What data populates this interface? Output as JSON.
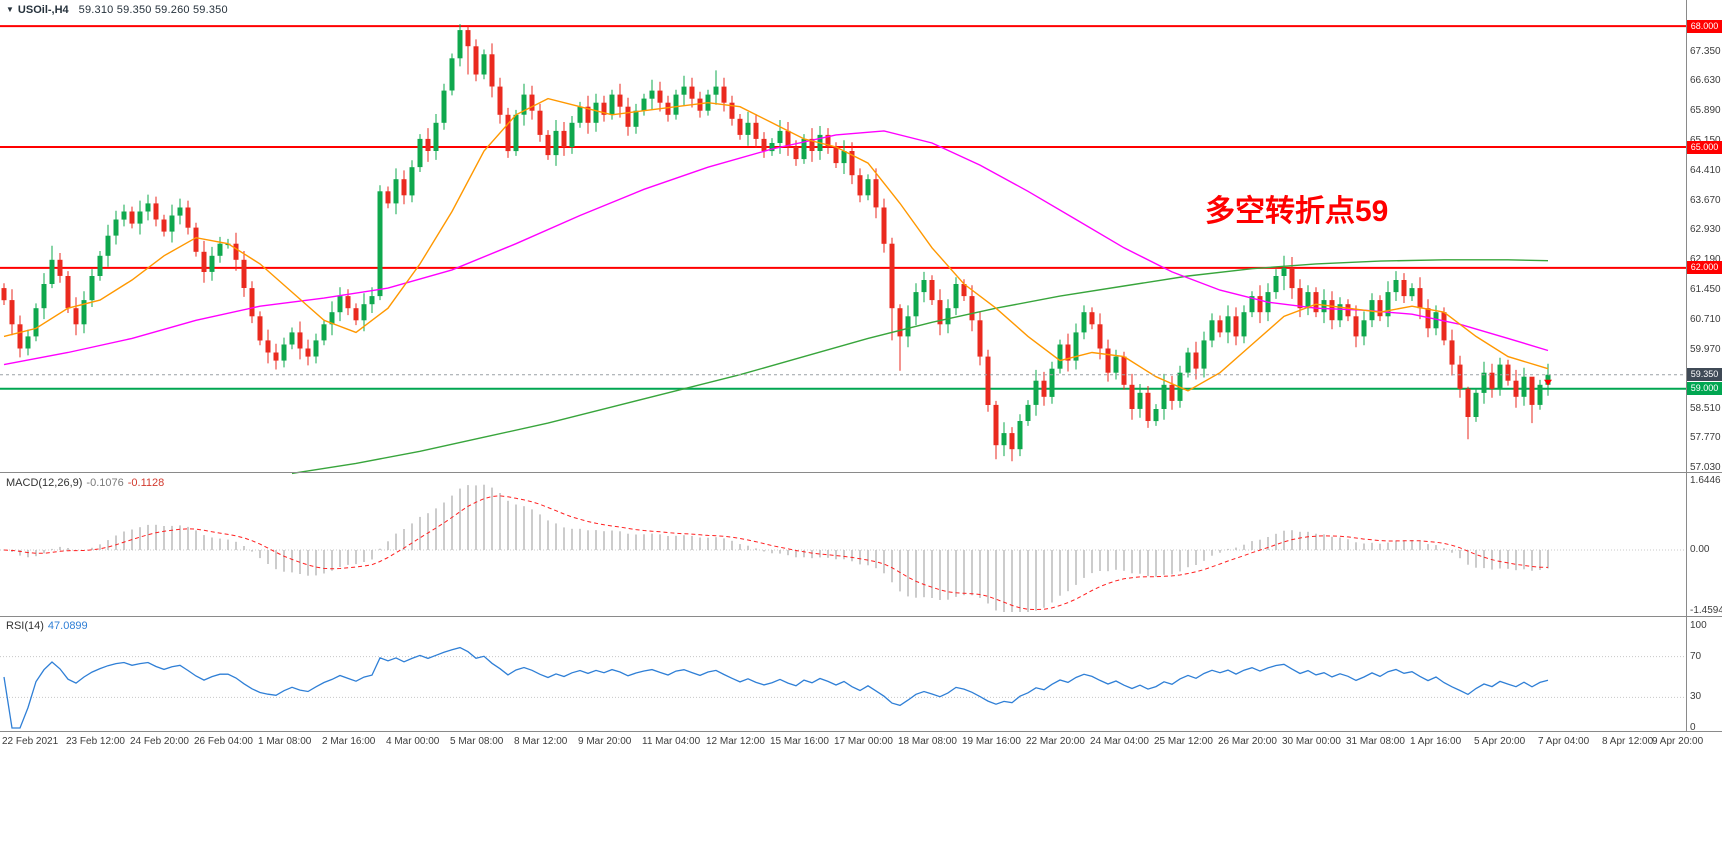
{
  "window": {
    "background": "#ffffff"
  },
  "header": {
    "collapse_icon": "▼",
    "title": "USOil-,H4",
    "ohlc": "59.310 59.350 59.260 59.350"
  },
  "annotation": {
    "text": "多空转折点59",
    "color": "#ff0000"
  },
  "colors": {
    "candle_up": "#0fa84e",
    "candle_down": "#ea2a1f",
    "ma_fast": "#ff9800",
    "ma_mid": "#ff00ff",
    "ma_slow": "#38a53c",
    "level_red": "#ff0000",
    "level_green": "#00a651",
    "macd_histogram": "#bfbfbf",
    "macd_signal": "#ff2020",
    "rsi_line": "#2f7fd6",
    "price_box": "#3f4a56",
    "current_price_line": "#9aa0a6"
  },
  "main_chart": {
    "price_ticks": [
      67.35,
      66.63,
      65.89,
      65.15,
      64.41,
      63.67,
      62.93,
      62.19,
      61.45,
      60.71,
      59.97,
      58.51,
      57.77,
      57.03
    ],
    "hlines": [
      {
        "label": "68.000",
        "value": 68.0,
        "color": "#ff0000"
      },
      {
        "label": "65.000",
        "value": 65.0,
        "color": "#ff0000"
      },
      {
        "label": "62.000",
        "value": 62.0,
        "color": "#ff0000"
      },
      {
        "label": "59.000",
        "value": 59.0,
        "color": "#00a651"
      }
    ],
    "current_price": {
      "label": "59.350",
      "value": 59.35
    }
  },
  "indicators": {
    "macd": {
      "label": "MACD(12,26,9)",
      "value_macd": "-0.1076",
      "value_signal": "-0.1128",
      "ticks": [
        "1.6446",
        "0.00",
        "-1.4594"
      ],
      "params": [
        12,
        26,
        9
      ]
    },
    "rsi": {
      "label": "RSI(14)",
      "value": "47.0899",
      "ticks": [
        100,
        70,
        30,
        0
      ],
      "levels": [
        70,
        30
      ],
      "period": 14
    }
  },
  "time_axis": {
    "labels": [
      "22 Feb 2021",
      "23 Feb 12:00",
      "24 Feb 20:00",
      "26 Feb 04:00",
      "1 Mar 08:00",
      "2 Mar 16:00",
      "4 Mar 00:00",
      "5 Mar 08:00",
      "8 Mar 12:00",
      "9 Mar 20:00",
      "11 Mar 04:00",
      "12 Mar 12:00",
      "15 Mar 16:00",
      "17 Mar 00:00",
      "18 Mar 08:00",
      "19 Mar 16:00",
      "22 Mar 20:00",
      "24 Mar 04:00",
      "25 Mar 12:00",
      "26 Mar 20:00",
      "30 Mar 00:00",
      "31 Mar 08:00",
      "1 Apr 16:00",
      "5 Apr 20:00",
      "7 Apr 04:00",
      "8 Apr 12:00",
      "9 Apr 20:00"
    ]
  },
  "chart_data": {
    "type": "candlestick",
    "symbol": "USOil",
    "timeframe": "H4",
    "title": "USOil-,H4",
    "last_bar_ohlc": {
      "open": 59.31,
      "high": 59.35,
      "low": 59.26,
      "close": 59.35
    },
    "y_axis_range": [
      57.03,
      68.35
    ],
    "x_label_step_bars": 8,
    "first_open": 61.5,
    "closes": [
      61.2,
      60.6,
      60.0,
      60.3,
      61.0,
      61.6,
      62.2,
      61.8,
      61.0,
      60.6,
      61.2,
      61.8,
      62.3,
      62.8,
      63.2,
      63.4,
      63.1,
      63.4,
      63.6,
      63.2,
      62.9,
      63.3,
      63.5,
      63.0,
      62.4,
      61.9,
      62.3,
      62.6,
      62.6,
      62.2,
      61.5,
      60.8,
      60.2,
      59.9,
      59.7,
      60.1,
      60.4,
      60.0,
      59.8,
      60.2,
      60.6,
      60.9,
      61.3,
      61.0,
      60.7,
      61.1,
      61.3,
      63.9,
      63.6,
      64.2,
      63.8,
      64.5,
      65.2,
      64.9,
      65.6,
      66.4,
      67.2,
      67.9,
      67.5,
      66.8,
      67.3,
      66.5,
      65.8,
      64.9,
      65.8,
      66.3,
      65.9,
      65.3,
      64.8,
      65.4,
      65.0,
      65.6,
      66.0,
      65.6,
      66.1,
      65.8,
      66.3,
      66.0,
      65.5,
      65.9,
      66.2,
      66.4,
      66.1,
      65.8,
      66.3,
      66.5,
      66.2,
      65.9,
      66.3,
      66.5,
      66.1,
      65.7,
      65.3,
      65.6,
      65.2,
      64.9,
      65.1,
      65.4,
      65.0,
      64.7,
      65.2,
      64.9,
      65.3,
      65.0,
      64.6,
      64.9,
      64.3,
      63.8,
      64.2,
      63.5,
      62.6,
      61.0,
      60.3,
      60.8,
      61.4,
      61.7,
      61.2,
      60.6,
      61.0,
      61.6,
      61.3,
      60.7,
      59.8,
      58.6,
      57.6,
      57.9,
      57.5,
      58.2,
      58.6,
      59.2,
      58.8,
      59.5,
      60.1,
      59.7,
      60.4,
      60.9,
      60.6,
      60.0,
      59.4,
      59.8,
      59.1,
      58.5,
      58.9,
      58.2,
      58.5,
      59.1,
      58.7,
      59.4,
      59.9,
      59.5,
      60.2,
      60.7,
      60.4,
      60.8,
      60.3,
      60.9,
      61.3,
      60.9,
      61.4,
      61.8,
      62.0,
      61.5,
      61.0,
      61.4,
      60.9,
      61.2,
      60.7,
      61.1,
      60.8,
      60.3,
      60.7,
      61.2,
      60.8,
      61.4,
      61.7,
      61.3,
      61.5,
      61.0,
      60.5,
      60.9,
      60.2,
      59.6,
      59.0,
      58.3,
      58.9,
      59.4,
      59.0,
      59.6,
      59.2,
      58.8,
      59.3,
      58.6,
      59.1,
      59.35
    ],
    "wick_overrides": {
      "6": [
        62.55,
        61.5
      ],
      "47": [
        64.05,
        61.2
      ],
      "57": [
        68.05,
        67.0
      ],
      "58": [
        68.0,
        66.8
      ],
      "89": [
        66.9,
        66.05
      ],
      "111": [
        62.75,
        60.2
      ],
      "112": [
        61.1,
        59.45
      ],
      "115": [
        61.9,
        61.15
      ],
      "124": [
        58.7,
        57.25
      ],
      "126": [
        58.05,
        57.2
      ],
      "160": [
        62.3,
        61.45
      ],
      "183": [
        59.05,
        57.75
      ],
      "191": [
        59.25,
        58.15
      ]
    },
    "moving_averages": {
      "fast_orange": [
        [
          0,
          60.3
        ],
        [
          4,
          60.5
        ],
        [
          8,
          61.0
        ],
        [
          12,
          61.2
        ],
        [
          16,
          61.7
        ],
        [
          20,
          62.3
        ],
        [
          24,
          62.75
        ],
        [
          28,
          62.6
        ],
        [
          32,
          62.1
        ],
        [
          36,
          61.4
        ],
        [
          40,
          60.7
        ],
        [
          44,
          60.4
        ],
        [
          48,
          61.0
        ],
        [
          52,
          62.1
        ],
        [
          56,
          63.4
        ],
        [
          60,
          64.9
        ],
        [
          64,
          65.8
        ],
        [
          68,
          66.2
        ],
        [
          72,
          66.0
        ],
        [
          76,
          65.8
        ],
        [
          80,
          65.9
        ],
        [
          84,
          66.0
        ],
        [
          88,
          66.1
        ],
        [
          92,
          66.0
        ],
        [
          96,
          65.6
        ],
        [
          100,
          65.2
        ],
        [
          104,
          65.0
        ],
        [
          108,
          64.6
        ],
        [
          112,
          63.6
        ],
        [
          116,
          62.5
        ],
        [
          120,
          61.6
        ],
        [
          124,
          61.0
        ],
        [
          128,
          60.3
        ],
        [
          132,
          59.7
        ],
        [
          136,
          59.9
        ],
        [
          140,
          59.8
        ],
        [
          144,
          59.3
        ],
        [
          148,
          58.95
        ],
        [
          152,
          59.4
        ],
        [
          156,
          60.1
        ],
        [
          160,
          60.8
        ],
        [
          164,
          61.1
        ],
        [
          168,
          61.0
        ],
        [
          172,
          60.9
        ],
        [
          176,
          61.05
        ],
        [
          180,
          60.9
        ],
        [
          184,
          60.3
        ],
        [
          188,
          59.8
        ],
        [
          193,
          59.5
        ]
      ],
      "mid_magenta": [
        [
          0,
          59.6
        ],
        [
          8,
          59.9
        ],
        [
          16,
          60.25
        ],
        [
          24,
          60.7
        ],
        [
          32,
          61.05
        ],
        [
          40,
          61.25
        ],
        [
          48,
          61.5
        ],
        [
          56,
          61.95
        ],
        [
          64,
          62.6
        ],
        [
          72,
          63.3
        ],
        [
          80,
          63.95
        ],
        [
          88,
          64.5
        ],
        [
          96,
          64.95
        ],
        [
          104,
          65.3
        ],
        [
          110,
          65.4
        ],
        [
          116,
          65.1
        ],
        [
          122,
          64.55
        ],
        [
          128,
          63.9
        ],
        [
          134,
          63.2
        ],
        [
          140,
          62.5
        ],
        [
          146,
          61.9
        ],
        [
          152,
          61.45
        ],
        [
          158,
          61.15
        ],
        [
          164,
          61.0
        ],
        [
          170,
          60.95
        ],
        [
          176,
          60.85
        ],
        [
          182,
          60.6
        ],
        [
          188,
          60.25
        ],
        [
          193,
          59.95
        ]
      ],
      "slow_green": [
        [
          36,
          56.9
        ],
        [
          44,
          57.15
        ],
        [
          52,
          57.45
        ],
        [
          60,
          57.8
        ],
        [
          68,
          58.15
        ],
        [
          76,
          58.55
        ],
        [
          84,
          58.95
        ],
        [
          92,
          59.35
        ],
        [
          100,
          59.8
        ],
        [
          108,
          60.25
        ],
        [
          116,
          60.65
        ],
        [
          124,
          61.0
        ],
        [
          132,
          61.3
        ],
        [
          140,
          61.55
        ],
        [
          148,
          61.8
        ],
        [
          156,
          61.98
        ],
        [
          164,
          62.1
        ],
        [
          172,
          62.17
        ],
        [
          180,
          62.2
        ],
        [
          188,
          62.2
        ],
        [
          193,
          62.18
        ]
      ]
    },
    "horizontal_levels": [
      68.0,
      65.0,
      62.0,
      59.0
    ],
    "macd_axis_range": [
      -1.4594,
      1.6446
    ],
    "rsi_axis_range": [
      0,
      100
    ]
  }
}
